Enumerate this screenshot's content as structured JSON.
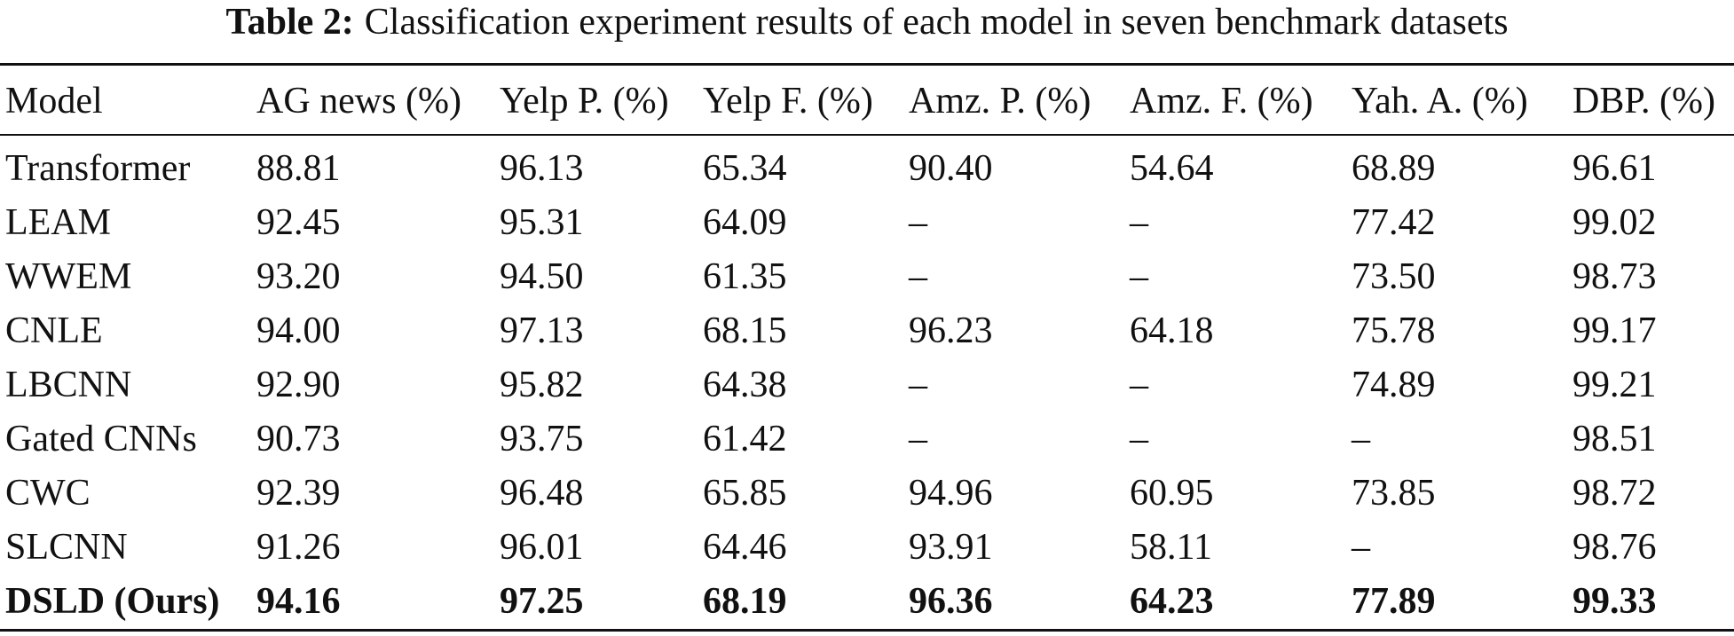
{
  "caption": {
    "label": "Table 2:",
    "text": "Classification experiment results of each model in seven benchmark datasets"
  },
  "table": {
    "header": [
      "Model",
      "AG news (%)",
      "Yelp P. (%)",
      "Yelp F. (%)",
      "Amz. P. (%)",
      "Amz. F. (%)",
      "Yah. A. (%)",
      "DBP. (%)"
    ],
    "rows": [
      [
        "Transformer",
        "88.81",
        "96.13",
        "65.34",
        "90.40",
        "54.64",
        "68.89",
        "96.61"
      ],
      [
        "LEAM",
        "92.45",
        "95.31",
        "64.09",
        "–",
        "–",
        "77.42",
        "99.02"
      ],
      [
        "WWEM",
        "93.20",
        "94.50",
        "61.35",
        "–",
        "–",
        "73.50",
        "98.73"
      ],
      [
        "CNLE",
        "94.00",
        "97.13",
        "68.15",
        "96.23",
        "64.18",
        "75.78",
        "99.17"
      ],
      [
        "LBCNN",
        "92.90",
        "95.82",
        "64.38",
        "–",
        "–",
        "74.89",
        "99.21"
      ],
      [
        "Gated CNNs",
        "90.73",
        "93.75",
        "61.42",
        "–",
        "–",
        "–",
        "98.51"
      ],
      [
        "CWC",
        "92.39",
        "96.48",
        "65.85",
        "94.96",
        "60.95",
        "73.85",
        "98.72"
      ],
      [
        "SLCNN",
        "91.26",
        "96.01",
        "64.46",
        "93.91",
        "58.11",
        "–",
        "98.76"
      ],
      [
        "DSLD (Ours)",
        "94.16",
        "97.25",
        "68.19",
        "96.36",
        "64.23",
        "77.89",
        "99.33"
      ]
    ]
  }
}
